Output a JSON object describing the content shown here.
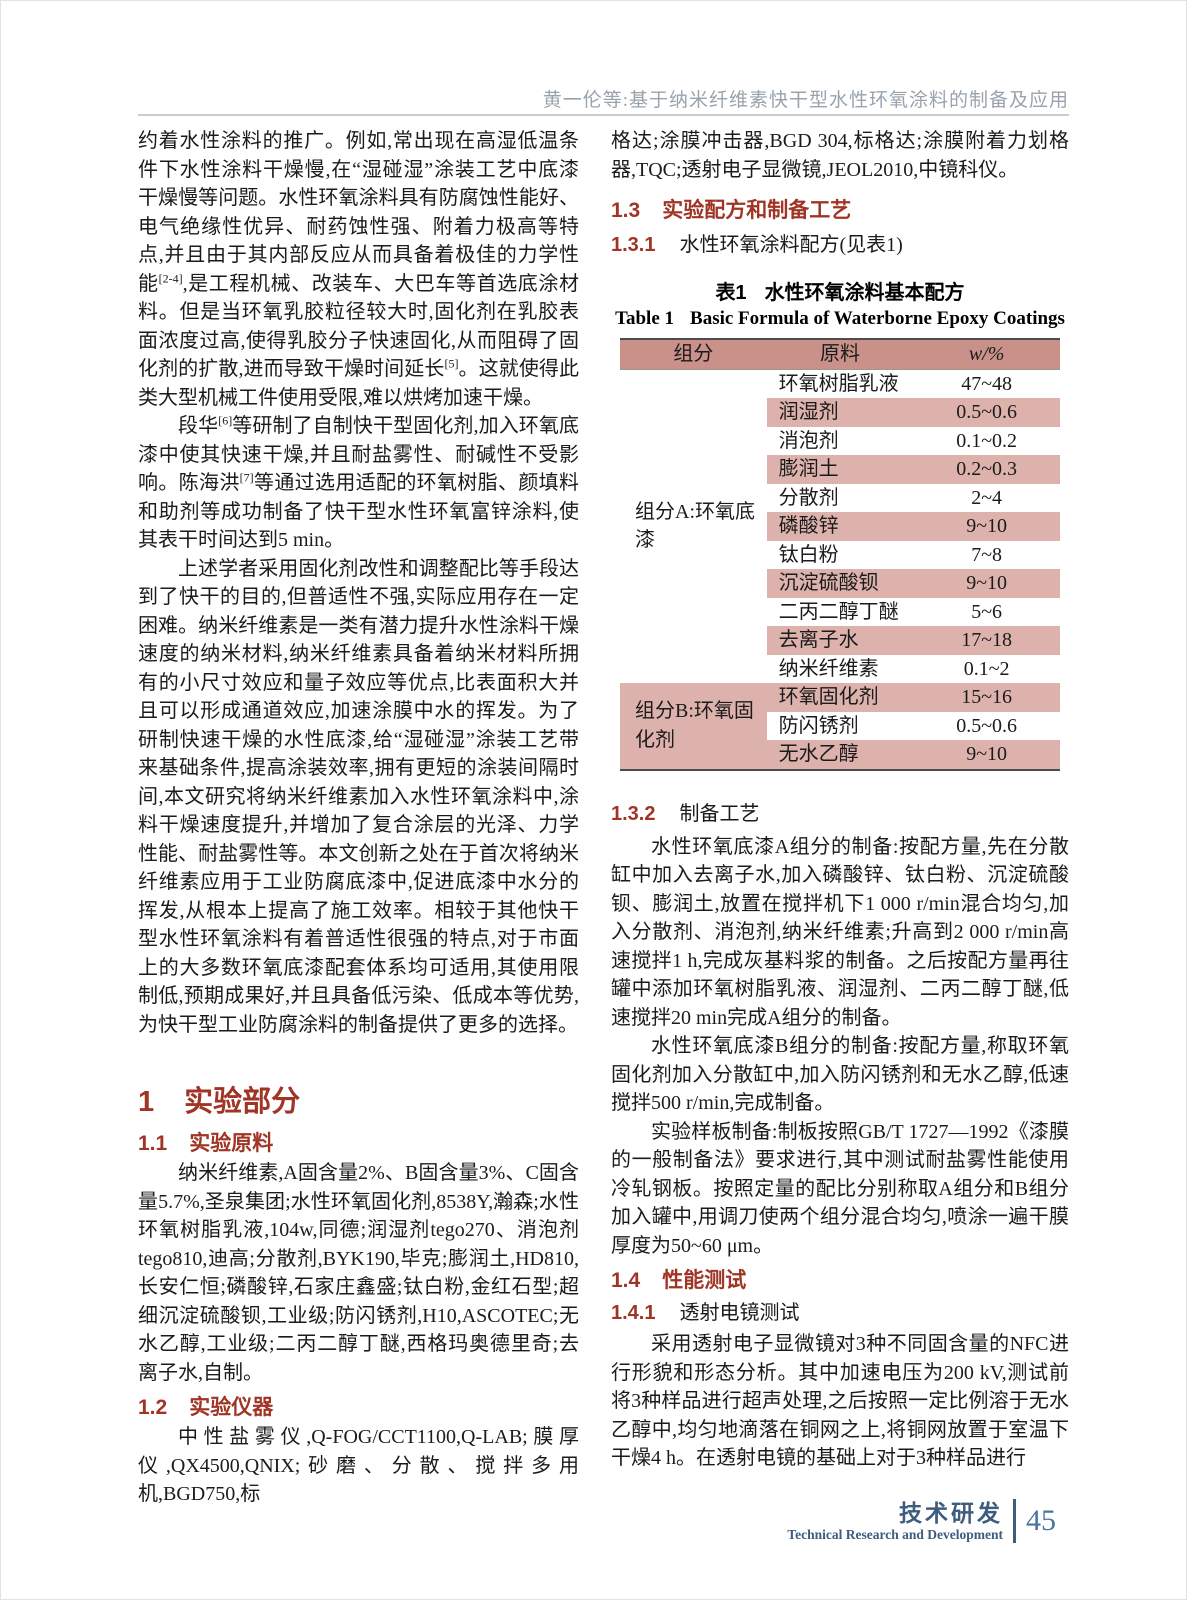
{
  "page": {
    "running_head": "黄一伦等:基于纳米纤维素快干型水性环氧涂料的制备及应用"
  },
  "left_column": {
    "para_intro_1": [
      {
        "t": "约着水性涂料的推广。例如,常出现在高湿低温条件下水性涂料干燥慢,在“湿碰湿”涂装工艺中底漆干燥慢等问题。水性环氧涂料具有防腐蚀性能好、电气绝缘性优异、耐药蚀性强、附着力极高等特点,并且由于其内部反应从而具备着极佳的力学性能"
      },
      {
        "s": "[2-4]"
      },
      {
        "t": ",是工程机械、改装车、大巴车等首选底涂材料。但是当环氧乳胶粒径较大时,固化剂在乳胶表面浓度过高,使得乳胶分子快速固化,从而阻碍了固化剂的扩散,进而导致干燥时间延长"
      },
      {
        "s": "[5]"
      },
      {
        "t": "。这就使得此类大型机械工件使用受限,难以烘烤加速干燥。"
      }
    ],
    "para_intro_2": [
      {
        "t": "段华"
      },
      {
        "s": "[6]"
      },
      {
        "t": "等研制了自制快干型固化剂,加入环氧底漆中使其快速干燥,并且耐盐雾性、耐碱性不受影响。陈海洪"
      },
      {
        "s": "[7]"
      },
      {
        "t": "等通过选用适配的环氧树脂、颜填料和助剂等成功制备了快干型水性环氧富锌涂料,使其表干时间达到5 min。"
      }
    ],
    "para_intro_3": [
      {
        "t": "上述学者采用固化剂改性和调整配比等手段达到了快干的目的,但普适性不强,实际应用存在一定困难。纳米纤维素是一类有潜力提升水性涂料干燥速度的纳米材料,纳米纤维素具备着纳米材料所拥有的小尺寸效应和量子效应等优点,比表面积大并且可以形成通道效应,加速涂膜中水的挥发。为了研制快速干燥的水性底漆,给“湿碰湿”涂装工艺带来基础条件,提高涂装效率,拥有更短的涂装间隔时间,本文研究将纳米纤维素加入水性环氧涂料中,涂料干燥速度提升,并增加了复合涂层的光泽、力学性能、耐盐雾性等。本文创新之处在于首次将纳米纤维素应用于工业防腐底漆中,促进底漆中水分的挥发,从根本上提高了施工效率。相较于其他快干型水性环氧涂料有着普适性很强的特点,对于市面上的大多数环氧底漆配套体系均可适用,其使用限制低,预期成果好,并且具备低污染、低成本等优势,为快干型工业防腐涂料的制备提供了更多的选择。"
      }
    ],
    "heading_1": {
      "num": "1",
      "title": "实验部分"
    },
    "heading_1_1": {
      "num": "1.1",
      "title": "实验原料"
    },
    "para_materials": [
      {
        "t": "纳米纤维素,A固含量2%、B固含量3%、C固含量5.7%,圣泉集团;水性环氧固化剂,8538Y,瀚森;水性环氧树脂乳液,104w,同德;润湿剂tego270、消泡剂tego810,迪高;分散剂,BYK190,毕克;膨润土,HD810,长安仁恒;磷酸锌,石家庄鑫盛;钛白粉,金红石型;超细沉淀硫酸钡,工业级;防闪锈剂,H10,ASCOTEC;无水乙醇,工业级;二丙二醇丁醚,西格玛奥德里奇;去离子水,自制。"
      }
    ],
    "heading_1_2": {
      "num": "1.2",
      "title": "实验仪器"
    },
    "para_instruments": [
      {
        "t": "中性盐雾仪,Q-FOG/CCT1100,Q-LAB;膜厚仪,QX4500,QNIX;砂磨、分散、搅拌多用机,BGD750,标"
      }
    ]
  },
  "right_column": {
    "para_instruments_cont": [
      {
        "t": "格达;涂膜冲击器,BGD 304,标格达;涂膜附着力划格器,TQC;透射电子显微镜,JEOL2010,中镜科仪。"
      }
    ],
    "heading_1_3": {
      "num": "1.3",
      "title": "实验配方和制备工艺"
    },
    "heading_1_3_1": {
      "num": "1.3.1",
      "title": "水性环氧涂料配方(见表1)"
    },
    "heading_1_3_2": {
      "num": "1.3.2",
      "title": "制备工艺"
    },
    "para_prep_a": [
      {
        "t": "水性环氧底漆A组分的制备:按配方量,先在分散缸中加入去离子水,加入磷酸锌、钛白粉、沉淀硫酸钡、膨润土,放置在搅拌机下1 000 r/min混合均匀,加入分散剂、消泡剂,纳米纤维素;升高到2 000 r/min高速搅拌1 h,完成灰基料浆的制备。之后按配方量再往罐中添加环氧树脂乳液、润湿剂、二丙二醇丁醚,低速搅拌20 min完成A组分的制备。"
      }
    ],
    "para_prep_b": [
      {
        "t": "水性环氧底漆B组分的制备:按配方量,称取环氧固化剂加入分散缸中,加入防闪锈剂和无水乙醇,低速搅拌500 r/min,完成制备。"
      }
    ],
    "para_sample": [
      {
        "t": "实验样板制备:制板按照GB/T 1727—1992《漆膜的一般制备法》要求进行,其中测试耐盐雾性能使用冷轧钢板。按照定量的配比分别称取A组分和B组分加入罐中,用调刀使两个组分混合均匀,喷涂一遍干膜厚度为50~60 μm。"
      }
    ],
    "heading_1_4": {
      "num": "1.4",
      "title": "性能测试"
    },
    "heading_1_4_1": {
      "num": "1.4.1",
      "title": "透射电镜测试"
    },
    "para_tem": [
      {
        "t": "采用透射电子显微镜对3种不同固含量的NFC进行形貌和形态分析。其中加速电压为200 kV,测试前将3种样品进行超声处理,之后按照一定比例溶于无水乙醇中,均匀地滴落在铜网之上,将铜网放置于室温下干燥4 h。在透射电镜的基础上对于3种样品进行"
      }
    ]
  },
  "table": {
    "caption_zh_label": "表1",
    "caption_zh_title": "水性环氧涂料基本配方",
    "caption_en_label": "Table 1",
    "caption_en_title": "Basic Formula of Waterborne Epoxy Coatings",
    "col_component": "组分",
    "col_material": "原料",
    "col_fraction": "w/%",
    "groups": [
      {
        "label": "组分A:环氧底漆",
        "rows": [
          [
            "环氧树脂乳液",
            "47~48"
          ],
          [
            "润湿剂",
            "0.5~0.6"
          ],
          [
            "消泡剂",
            "0.1~0.2"
          ],
          [
            "膨润土",
            "0.2~0.3"
          ],
          [
            "分散剂",
            "2~4"
          ],
          [
            "磷酸锌",
            "9~10"
          ],
          [
            "钛白粉",
            "7~8"
          ],
          [
            "沉淀硫酸钡",
            "9~10"
          ],
          [
            "二丙二醇丁醚",
            "5~6"
          ],
          [
            "去离子水",
            "17~18"
          ],
          [
            "纳米纤维素",
            "0.1~2"
          ]
        ]
      },
      {
        "label": "组分B:环氧固化剂",
        "rows": [
          [
            "环氧固化剂",
            "15~16"
          ],
          [
            "防闪锈剂",
            "0.5~0.6"
          ],
          [
            "无水乙醇",
            "9~10"
          ]
        ]
      }
    ]
  },
  "footer": {
    "section_zh": "技术研发",
    "section_en": "Technical Research and Development",
    "page_number": "45"
  },
  "colors": {
    "accent_red": "#a03425",
    "table_header": "#c9918a",
    "table_stripe": "#ddb2ac",
    "running_head_gray": "#98a3ad",
    "footer_blue": "#3d5c7e",
    "page_number_blue": "#4a72a2"
  }
}
